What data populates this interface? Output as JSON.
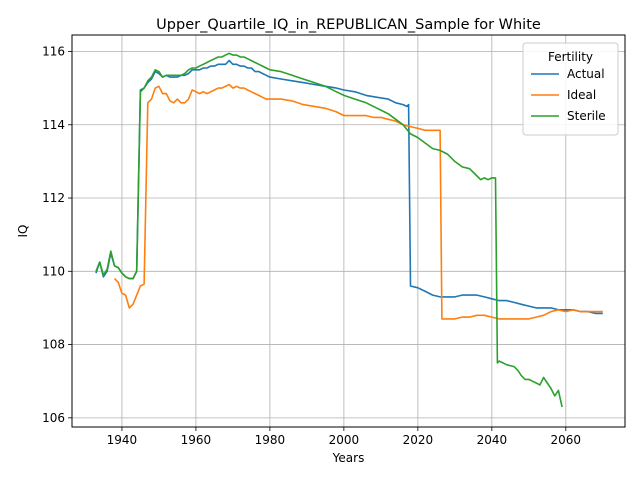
{
  "chart_data": {
    "type": "line",
    "title": "Upper_Quartile_IQ_in_REPUBLICAN_Sample for White",
    "xlabel": "Years",
    "ylabel": "IQ",
    "xlim": [
      1926.5,
      2076
    ],
    "ylim": [
      105.75,
      116.45
    ],
    "xticks": [
      1940,
      1960,
      1980,
      2000,
      2020,
      2040,
      2060
    ],
    "yticks": [
      106,
      108,
      110,
      112,
      114,
      116
    ],
    "grid": true,
    "legend": {
      "title": "Fertility",
      "placement": "top-right"
    },
    "series": [
      {
        "name": "Actual",
        "color": "#1f77b4",
        "points": [
          [
            1933,
            109.95
          ],
          [
            1934,
            110.25
          ],
          [
            1935,
            109.85
          ],
          [
            1936,
            110.0
          ],
          [
            1937,
            110.5
          ],
          [
            1938,
            110.15
          ],
          [
            1939,
            110.1
          ],
          [
            1940,
            109.95
          ],
          [
            1941,
            109.85
          ],
          [
            1942,
            109.8
          ],
          [
            1943,
            109.8
          ],
          [
            1944,
            110.0
          ],
          [
            1945,
            114.95
          ],
          [
            1946,
            115.0
          ],
          [
            1947,
            115.15
          ],
          [
            1948,
            115.25
          ],
          [
            1949,
            115.45
          ],
          [
            1950,
            115.4
          ],
          [
            1951,
            115.3
          ],
          [
            1952,
            115.35
          ],
          [
            1953,
            115.3
          ],
          [
            1954,
            115.3
          ],
          [
            1955,
            115.3
          ],
          [
            1956,
            115.35
          ],
          [
            1957,
            115.35
          ],
          [
            1958,
            115.4
          ],
          [
            1959,
            115.5
          ],
          [
            1960,
            115.5
          ],
          [
            1961,
            115.5
          ],
          [
            1962,
            115.55
          ],
          [
            1963,
            115.55
          ],
          [
            1964,
            115.6
          ],
          [
            1965,
            115.6
          ],
          [
            1966,
            115.65
          ],
          [
            1967,
            115.65
          ],
          [
            1968,
            115.65
          ],
          [
            1969,
            115.75
          ],
          [
            1970,
            115.65
          ],
          [
            1971,
            115.65
          ],
          [
            1972,
            115.6
          ],
          [
            1973,
            115.6
          ],
          [
            1974,
            115.55
          ],
          [
            1975,
            115.55
          ],
          [
            1976,
            115.45
          ],
          [
            1977,
            115.45
          ],
          [
            1978,
            115.4
          ],
          [
            1979,
            115.35
          ],
          [
            1980,
            115.3
          ],
          [
            1983,
            115.25
          ],
          [
            1986,
            115.2
          ],
          [
            1989,
            115.15
          ],
          [
            1992,
            115.1
          ],
          [
            1995,
            115.05
          ],
          [
            1998,
            115.0
          ],
          [
            2000,
            114.95
          ],
          [
            2003,
            114.9
          ],
          [
            2006,
            114.8
          ],
          [
            2009,
            114.75
          ],
          [
            2012,
            114.7
          ],
          [
            2014,
            114.6
          ],
          [
            2016,
            114.55
          ],
          [
            2017,
            114.5
          ],
          [
            2017.5,
            114.55
          ],
          [
            2018,
            109.6
          ],
          [
            2020,
            109.55
          ],
          [
            2022,
            109.45
          ],
          [
            2024,
            109.35
          ],
          [
            2026,
            109.3
          ],
          [
            2028,
            109.3
          ],
          [
            2030,
            109.3
          ],
          [
            2032,
            109.35
          ],
          [
            2034,
            109.35
          ],
          [
            2036,
            109.35
          ],
          [
            2038,
            109.3
          ],
          [
            2040,
            109.25
          ],
          [
            2042,
            109.2
          ],
          [
            2044,
            109.2
          ],
          [
            2046,
            109.15
          ],
          [
            2048,
            109.1
          ],
          [
            2050,
            109.05
          ],
          [
            2052,
            109.0
          ],
          [
            2054,
            109.0
          ],
          [
            2056,
            109.0
          ],
          [
            2058,
            108.95
          ],
          [
            2060,
            108.95
          ],
          [
            2062,
            108.95
          ],
          [
            2064,
            108.9
          ],
          [
            2066,
            108.9
          ],
          [
            2068,
            108.85
          ],
          [
            2070,
            108.85
          ]
        ]
      },
      {
        "name": "Ideal",
        "color": "#ff7f0e",
        "points": [
          [
            1938,
            109.8
          ],
          [
            1939,
            109.7
          ],
          [
            1940,
            109.4
          ],
          [
            1941,
            109.35
          ],
          [
            1942,
            109.0
          ],
          [
            1943,
            109.1
          ],
          [
            1944,
            109.35
          ],
          [
            1945,
            109.6
          ],
          [
            1946,
            109.65
          ],
          [
            1947,
            114.6
          ],
          [
            1948,
            114.7
          ],
          [
            1949,
            115.0
          ],
          [
            1950,
            115.05
          ],
          [
            1951,
            114.85
          ],
          [
            1952,
            114.85
          ],
          [
            1953,
            114.65
          ],
          [
            1954,
            114.6
          ],
          [
            1955,
            114.7
          ],
          [
            1956,
            114.6
          ],
          [
            1957,
            114.6
          ],
          [
            1958,
            114.7
          ],
          [
            1959,
            114.95
          ],
          [
            1960,
            114.9
          ],
          [
            1961,
            114.85
          ],
          [
            1962,
            114.9
          ],
          [
            1963,
            114.85
          ],
          [
            1964,
            114.9
          ],
          [
            1965,
            114.95
          ],
          [
            1966,
            115.0
          ],
          [
            1967,
            115.0
          ],
          [
            1968,
            115.05
          ],
          [
            1969,
            115.1
          ],
          [
            1970,
            115.0
          ],
          [
            1971,
            115.05
          ],
          [
            1972,
            115.0
          ],
          [
            1973,
            115.0
          ],
          [
            1974,
            114.95
          ],
          [
            1975,
            114.9
          ],
          [
            1976,
            114.85
          ],
          [
            1977,
            114.8
          ],
          [
            1978,
            114.75
          ],
          [
            1979,
            114.7
          ],
          [
            1980,
            114.7
          ],
          [
            1983,
            114.7
          ],
          [
            1986,
            114.65
          ],
          [
            1989,
            114.55
          ],
          [
            1992,
            114.5
          ],
          [
            1995,
            114.45
          ],
          [
            1998,
            114.35
          ],
          [
            2000,
            114.25
          ],
          [
            2002,
            114.25
          ],
          [
            2004,
            114.25
          ],
          [
            2006,
            114.25
          ],
          [
            2008,
            114.2
          ],
          [
            2010,
            114.2
          ],
          [
            2012,
            114.15
          ],
          [
            2014,
            114.1
          ],
          [
            2016,
            114.0
          ],
          [
            2018,
            113.95
          ],
          [
            2020,
            113.9
          ],
          [
            2022,
            113.85
          ],
          [
            2024,
            113.85
          ],
          [
            2026,
            113.85
          ],
          [
            2026.5,
            108.7
          ],
          [
            2028,
            108.7
          ],
          [
            2030,
            108.7
          ],
          [
            2032,
            108.75
          ],
          [
            2034,
            108.75
          ],
          [
            2036,
            108.8
          ],
          [
            2038,
            108.8
          ],
          [
            2040,
            108.75
          ],
          [
            2042,
            108.7
          ],
          [
            2044,
            108.7
          ],
          [
            2046,
            108.7
          ],
          [
            2048,
            108.7
          ],
          [
            2050,
            108.7
          ],
          [
            2052,
            108.75
          ],
          [
            2054,
            108.8
          ],
          [
            2056,
            108.9
          ],
          [
            2058,
            108.95
          ],
          [
            2060,
            108.9
          ],
          [
            2062,
            108.95
          ],
          [
            2064,
            108.9
          ],
          [
            2066,
            108.9
          ],
          [
            2068,
            108.9
          ],
          [
            2070,
            108.9
          ]
        ]
      },
      {
        "name": "Sterile",
        "color": "#2ca02c",
        "points": [
          [
            1933,
            110.0
          ],
          [
            1934,
            110.25
          ],
          [
            1935,
            109.9
          ],
          [
            1936,
            110.05
          ],
          [
            1937,
            110.55
          ],
          [
            1938,
            110.15
          ],
          [
            1939,
            110.1
          ],
          [
            1940,
            109.95
          ],
          [
            1941,
            109.85
          ],
          [
            1942,
            109.8
          ],
          [
            1943,
            109.8
          ],
          [
            1944,
            110.0
          ],
          [
            1945,
            114.9
          ],
          [
            1946,
            115.0
          ],
          [
            1947,
            115.2
          ],
          [
            1948,
            115.3
          ],
          [
            1949,
            115.5
          ],
          [
            1950,
            115.45
          ],
          [
            1951,
            115.3
          ],
          [
            1952,
            115.35
          ],
          [
            1953,
            115.35
          ],
          [
            1954,
            115.35
          ],
          [
            1955,
            115.35
          ],
          [
            1956,
            115.35
          ],
          [
            1957,
            115.4
          ],
          [
            1958,
            115.5
          ],
          [
            1959,
            115.55
          ],
          [
            1960,
            115.55
          ],
          [
            1961,
            115.6
          ],
          [
            1962,
            115.65
          ],
          [
            1963,
            115.7
          ],
          [
            1964,
            115.75
          ],
          [
            1965,
            115.8
          ],
          [
            1966,
            115.85
          ],
          [
            1967,
            115.85
          ],
          [
            1968,
            115.9
          ],
          [
            1969,
            115.95
          ],
          [
            1970,
            115.9
          ],
          [
            1971,
            115.9
          ],
          [
            1972,
            115.85
          ],
          [
            1973,
            115.85
          ],
          [
            1974,
            115.8
          ],
          [
            1975,
            115.75
          ],
          [
            1976,
            115.7
          ],
          [
            1977,
            115.65
          ],
          [
            1978,
            115.6
          ],
          [
            1979,
            115.55
          ],
          [
            1980,
            115.5
          ],
          [
            1983,
            115.45
          ],
          [
            1986,
            115.35
          ],
          [
            1989,
            115.25
          ],
          [
            1992,
            115.15
          ],
          [
            1995,
            115.05
          ],
          [
            1998,
            114.9
          ],
          [
            2000,
            114.8
          ],
          [
            2003,
            114.7
          ],
          [
            2006,
            114.6
          ],
          [
            2009,
            114.45
          ],
          [
            2012,
            114.3
          ],
          [
            2014,
            114.15
          ],
          [
            2016,
            114.0
          ],
          [
            2018,
            113.75
          ],
          [
            2020,
            113.65
          ],
          [
            2022,
            113.5
          ],
          [
            2024,
            113.35
          ],
          [
            2026,
            113.3
          ],
          [
            2028,
            113.2
          ],
          [
            2030,
            113.0
          ],
          [
            2032,
            112.85
          ],
          [
            2034,
            112.8
          ],
          [
            2036,
            112.6
          ],
          [
            2037,
            112.5
          ],
          [
            2038,
            112.55
          ],
          [
            2039,
            112.5
          ],
          [
            2040,
            112.55
          ],
          [
            2041,
            112.55
          ],
          [
            2041.5,
            107.5
          ],
          [
            2042,
            107.55
          ],
          [
            2044,
            107.45
          ],
          [
            2046,
            107.4
          ],
          [
            2047,
            107.3
          ],
          [
            2048,
            107.15
          ],
          [
            2049,
            107.05
          ],
          [
            2050,
            107.05
          ],
          [
            2051,
            107.0
          ],
          [
            2052,
            106.95
          ],
          [
            2053,
            106.9
          ],
          [
            2054,
            107.1
          ],
          [
            2055,
            106.95
          ],
          [
            2056,
            106.8
          ],
          [
            2057,
            106.6
          ],
          [
            2058,
            106.75
          ],
          [
            2059,
            106.3
          ]
        ]
      }
    ]
  }
}
